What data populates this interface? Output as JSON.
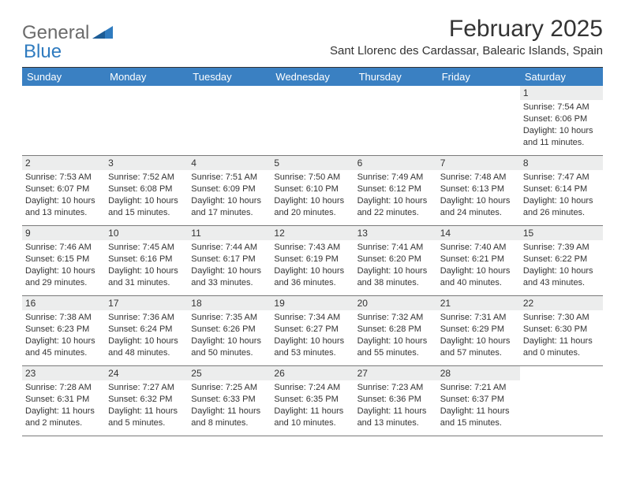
{
  "logo": {
    "text1": "General",
    "text2": "Blue",
    "shape_color": "#2f7bbf",
    "text_color": "#6b6b6b"
  },
  "title": "February 2025",
  "location": "Sant Llorenc des Cardassar, Balearic Islands, Spain",
  "header_bg": "#3a80c2",
  "dow": [
    "Sunday",
    "Monday",
    "Tuesday",
    "Wednesday",
    "Thursday",
    "Friday",
    "Saturday"
  ],
  "weeks": [
    [
      null,
      null,
      null,
      null,
      null,
      null,
      {
        "n": "1",
        "sr": "Sunrise: 7:54 AM",
        "ss": "Sunset: 6:06 PM",
        "dl": "Daylight: 10 hours and 11 minutes."
      }
    ],
    [
      {
        "n": "2",
        "sr": "Sunrise: 7:53 AM",
        "ss": "Sunset: 6:07 PM",
        "dl": "Daylight: 10 hours and 13 minutes."
      },
      {
        "n": "3",
        "sr": "Sunrise: 7:52 AM",
        "ss": "Sunset: 6:08 PM",
        "dl": "Daylight: 10 hours and 15 minutes."
      },
      {
        "n": "4",
        "sr": "Sunrise: 7:51 AM",
        "ss": "Sunset: 6:09 PM",
        "dl": "Daylight: 10 hours and 17 minutes."
      },
      {
        "n": "5",
        "sr": "Sunrise: 7:50 AM",
        "ss": "Sunset: 6:10 PM",
        "dl": "Daylight: 10 hours and 20 minutes."
      },
      {
        "n": "6",
        "sr": "Sunrise: 7:49 AM",
        "ss": "Sunset: 6:12 PM",
        "dl": "Daylight: 10 hours and 22 minutes."
      },
      {
        "n": "7",
        "sr": "Sunrise: 7:48 AM",
        "ss": "Sunset: 6:13 PM",
        "dl": "Daylight: 10 hours and 24 minutes."
      },
      {
        "n": "8",
        "sr": "Sunrise: 7:47 AM",
        "ss": "Sunset: 6:14 PM",
        "dl": "Daylight: 10 hours and 26 minutes."
      }
    ],
    [
      {
        "n": "9",
        "sr": "Sunrise: 7:46 AM",
        "ss": "Sunset: 6:15 PM",
        "dl": "Daylight: 10 hours and 29 minutes."
      },
      {
        "n": "10",
        "sr": "Sunrise: 7:45 AM",
        "ss": "Sunset: 6:16 PM",
        "dl": "Daylight: 10 hours and 31 minutes."
      },
      {
        "n": "11",
        "sr": "Sunrise: 7:44 AM",
        "ss": "Sunset: 6:17 PM",
        "dl": "Daylight: 10 hours and 33 minutes."
      },
      {
        "n": "12",
        "sr": "Sunrise: 7:43 AM",
        "ss": "Sunset: 6:19 PM",
        "dl": "Daylight: 10 hours and 36 minutes."
      },
      {
        "n": "13",
        "sr": "Sunrise: 7:41 AM",
        "ss": "Sunset: 6:20 PM",
        "dl": "Daylight: 10 hours and 38 minutes."
      },
      {
        "n": "14",
        "sr": "Sunrise: 7:40 AM",
        "ss": "Sunset: 6:21 PM",
        "dl": "Daylight: 10 hours and 40 minutes."
      },
      {
        "n": "15",
        "sr": "Sunrise: 7:39 AM",
        "ss": "Sunset: 6:22 PM",
        "dl": "Daylight: 10 hours and 43 minutes."
      }
    ],
    [
      {
        "n": "16",
        "sr": "Sunrise: 7:38 AM",
        "ss": "Sunset: 6:23 PM",
        "dl": "Daylight: 10 hours and 45 minutes."
      },
      {
        "n": "17",
        "sr": "Sunrise: 7:36 AM",
        "ss": "Sunset: 6:24 PM",
        "dl": "Daylight: 10 hours and 48 minutes."
      },
      {
        "n": "18",
        "sr": "Sunrise: 7:35 AM",
        "ss": "Sunset: 6:26 PM",
        "dl": "Daylight: 10 hours and 50 minutes."
      },
      {
        "n": "19",
        "sr": "Sunrise: 7:34 AM",
        "ss": "Sunset: 6:27 PM",
        "dl": "Daylight: 10 hours and 53 minutes."
      },
      {
        "n": "20",
        "sr": "Sunrise: 7:32 AM",
        "ss": "Sunset: 6:28 PM",
        "dl": "Daylight: 10 hours and 55 minutes."
      },
      {
        "n": "21",
        "sr": "Sunrise: 7:31 AM",
        "ss": "Sunset: 6:29 PM",
        "dl": "Daylight: 10 hours and 57 minutes."
      },
      {
        "n": "22",
        "sr": "Sunrise: 7:30 AM",
        "ss": "Sunset: 6:30 PM",
        "dl": "Daylight: 11 hours and 0 minutes."
      }
    ],
    [
      {
        "n": "23",
        "sr": "Sunrise: 7:28 AM",
        "ss": "Sunset: 6:31 PM",
        "dl": "Daylight: 11 hours and 2 minutes."
      },
      {
        "n": "24",
        "sr": "Sunrise: 7:27 AM",
        "ss": "Sunset: 6:32 PM",
        "dl": "Daylight: 11 hours and 5 minutes."
      },
      {
        "n": "25",
        "sr": "Sunrise: 7:25 AM",
        "ss": "Sunset: 6:33 PM",
        "dl": "Daylight: 11 hours and 8 minutes."
      },
      {
        "n": "26",
        "sr": "Sunrise: 7:24 AM",
        "ss": "Sunset: 6:35 PM",
        "dl": "Daylight: 11 hours and 10 minutes."
      },
      {
        "n": "27",
        "sr": "Sunrise: 7:23 AM",
        "ss": "Sunset: 6:36 PM",
        "dl": "Daylight: 11 hours and 13 minutes."
      },
      {
        "n": "28",
        "sr": "Sunrise: 7:21 AM",
        "ss": "Sunset: 6:37 PM",
        "dl": "Daylight: 11 hours and 15 minutes."
      },
      null
    ]
  ]
}
